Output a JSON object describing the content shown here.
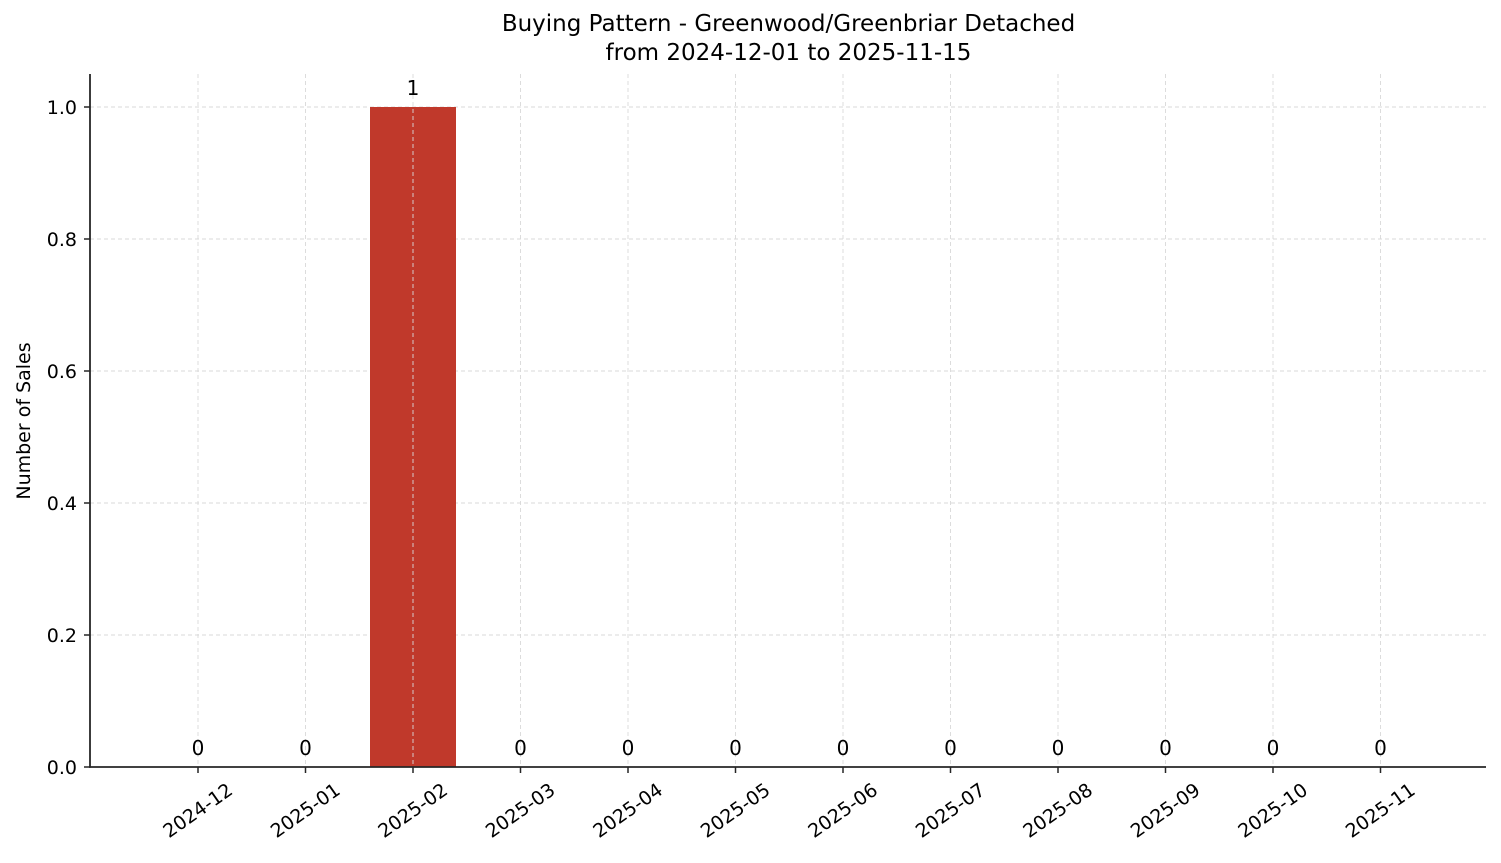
{
  "chart_data": {
    "type": "bar",
    "title": "Buying Pattern - Greenwood/Greenbriar Detached",
    "subtitle": "from 2024-12-01 to 2025-11-15",
    "xlabel": "",
    "ylabel": "Number of Sales",
    "categories": [
      "2024-12",
      "2025-01",
      "2025-02",
      "2025-03",
      "2025-04",
      "2025-05",
      "2025-06",
      "2025-07",
      "2025-08",
      "2025-09",
      "2025-10",
      "2025-11"
    ],
    "values": [
      0,
      0,
      1,
      0,
      0,
      0,
      0,
      0,
      0,
      0,
      0,
      0
    ],
    "data_labels": [
      "0",
      "0",
      "1",
      "0",
      "0",
      "0",
      "0",
      "0",
      "0",
      "0",
      "0",
      "0"
    ],
    "ylim": [
      0,
      1.05
    ],
    "yticks": [
      "0.0",
      "0.2",
      "0.4",
      "0.6",
      "0.8",
      "1.0"
    ],
    "grid": true,
    "legend": null,
    "bar_color": "#c0392b"
  }
}
